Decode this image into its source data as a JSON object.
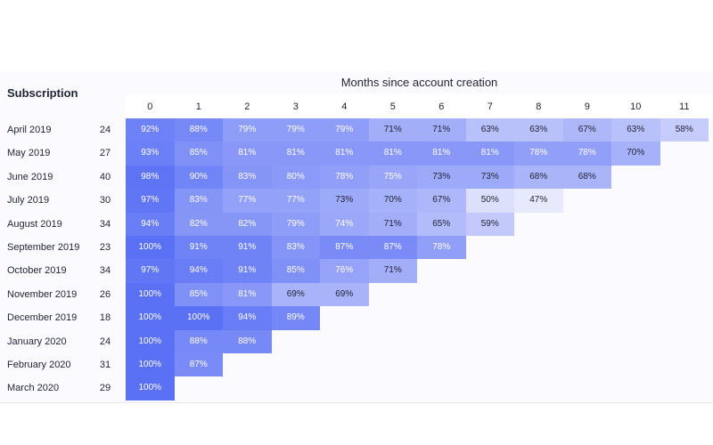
{
  "chart_data": {
    "type": "heatmap",
    "title": "Subscription",
    "xlabel": "Months since account creation",
    "x": [
      "0",
      "1",
      "2",
      "3",
      "4",
      "5",
      "6",
      "7",
      "8",
      "9",
      "10",
      "11"
    ],
    "rows": [
      {
        "label": "April 2019",
        "size": "24",
        "values": [
          92,
          88,
          79,
          79,
          79,
          71,
          71,
          63,
          63,
          67,
          63,
          58
        ]
      },
      {
        "label": "May 2019",
        "size": "27",
        "values": [
          93,
          85,
          81,
          81,
          81,
          81,
          81,
          81,
          78,
          78,
          70
        ]
      },
      {
        "label": "June 2019",
        "size": "40",
        "values": [
          98,
          90,
          83,
          80,
          78,
          75,
          73,
          73,
          68,
          68
        ]
      },
      {
        "label": "July 2019",
        "size": "30",
        "values": [
          97,
          83,
          77,
          77,
          73,
          70,
          67,
          50,
          47
        ]
      },
      {
        "label": "August 2019",
        "size": "34",
        "values": [
          94,
          82,
          82,
          79,
          74,
          71,
          65,
          59
        ]
      },
      {
        "label": "September 2019",
        "size": "23",
        "values": [
          100,
          91,
          91,
          83,
          87,
          87,
          78
        ]
      },
      {
        "label": "October 2019",
        "size": "34",
        "values": [
          97,
          94,
          91,
          85,
          76,
          71
        ]
      },
      {
        "label": "November 2019",
        "size": "26",
        "values": [
          100,
          85,
          81,
          69,
          69
        ]
      },
      {
        "label": "December 2019",
        "size": "18",
        "values": [
          100,
          100,
          94,
          89
        ]
      },
      {
        "label": "January 2020",
        "size": "24",
        "values": [
          100,
          88,
          88
        ]
      },
      {
        "label": "February 2020",
        "size": "31",
        "values": [
          100,
          87
        ]
      },
      {
        "label": "March 2020",
        "size": "29",
        "values": [
          100
        ]
      }
    ],
    "value_suffix": "%",
    "color_low": "#eeeffd",
    "color_high": "#5a70f5"
  }
}
